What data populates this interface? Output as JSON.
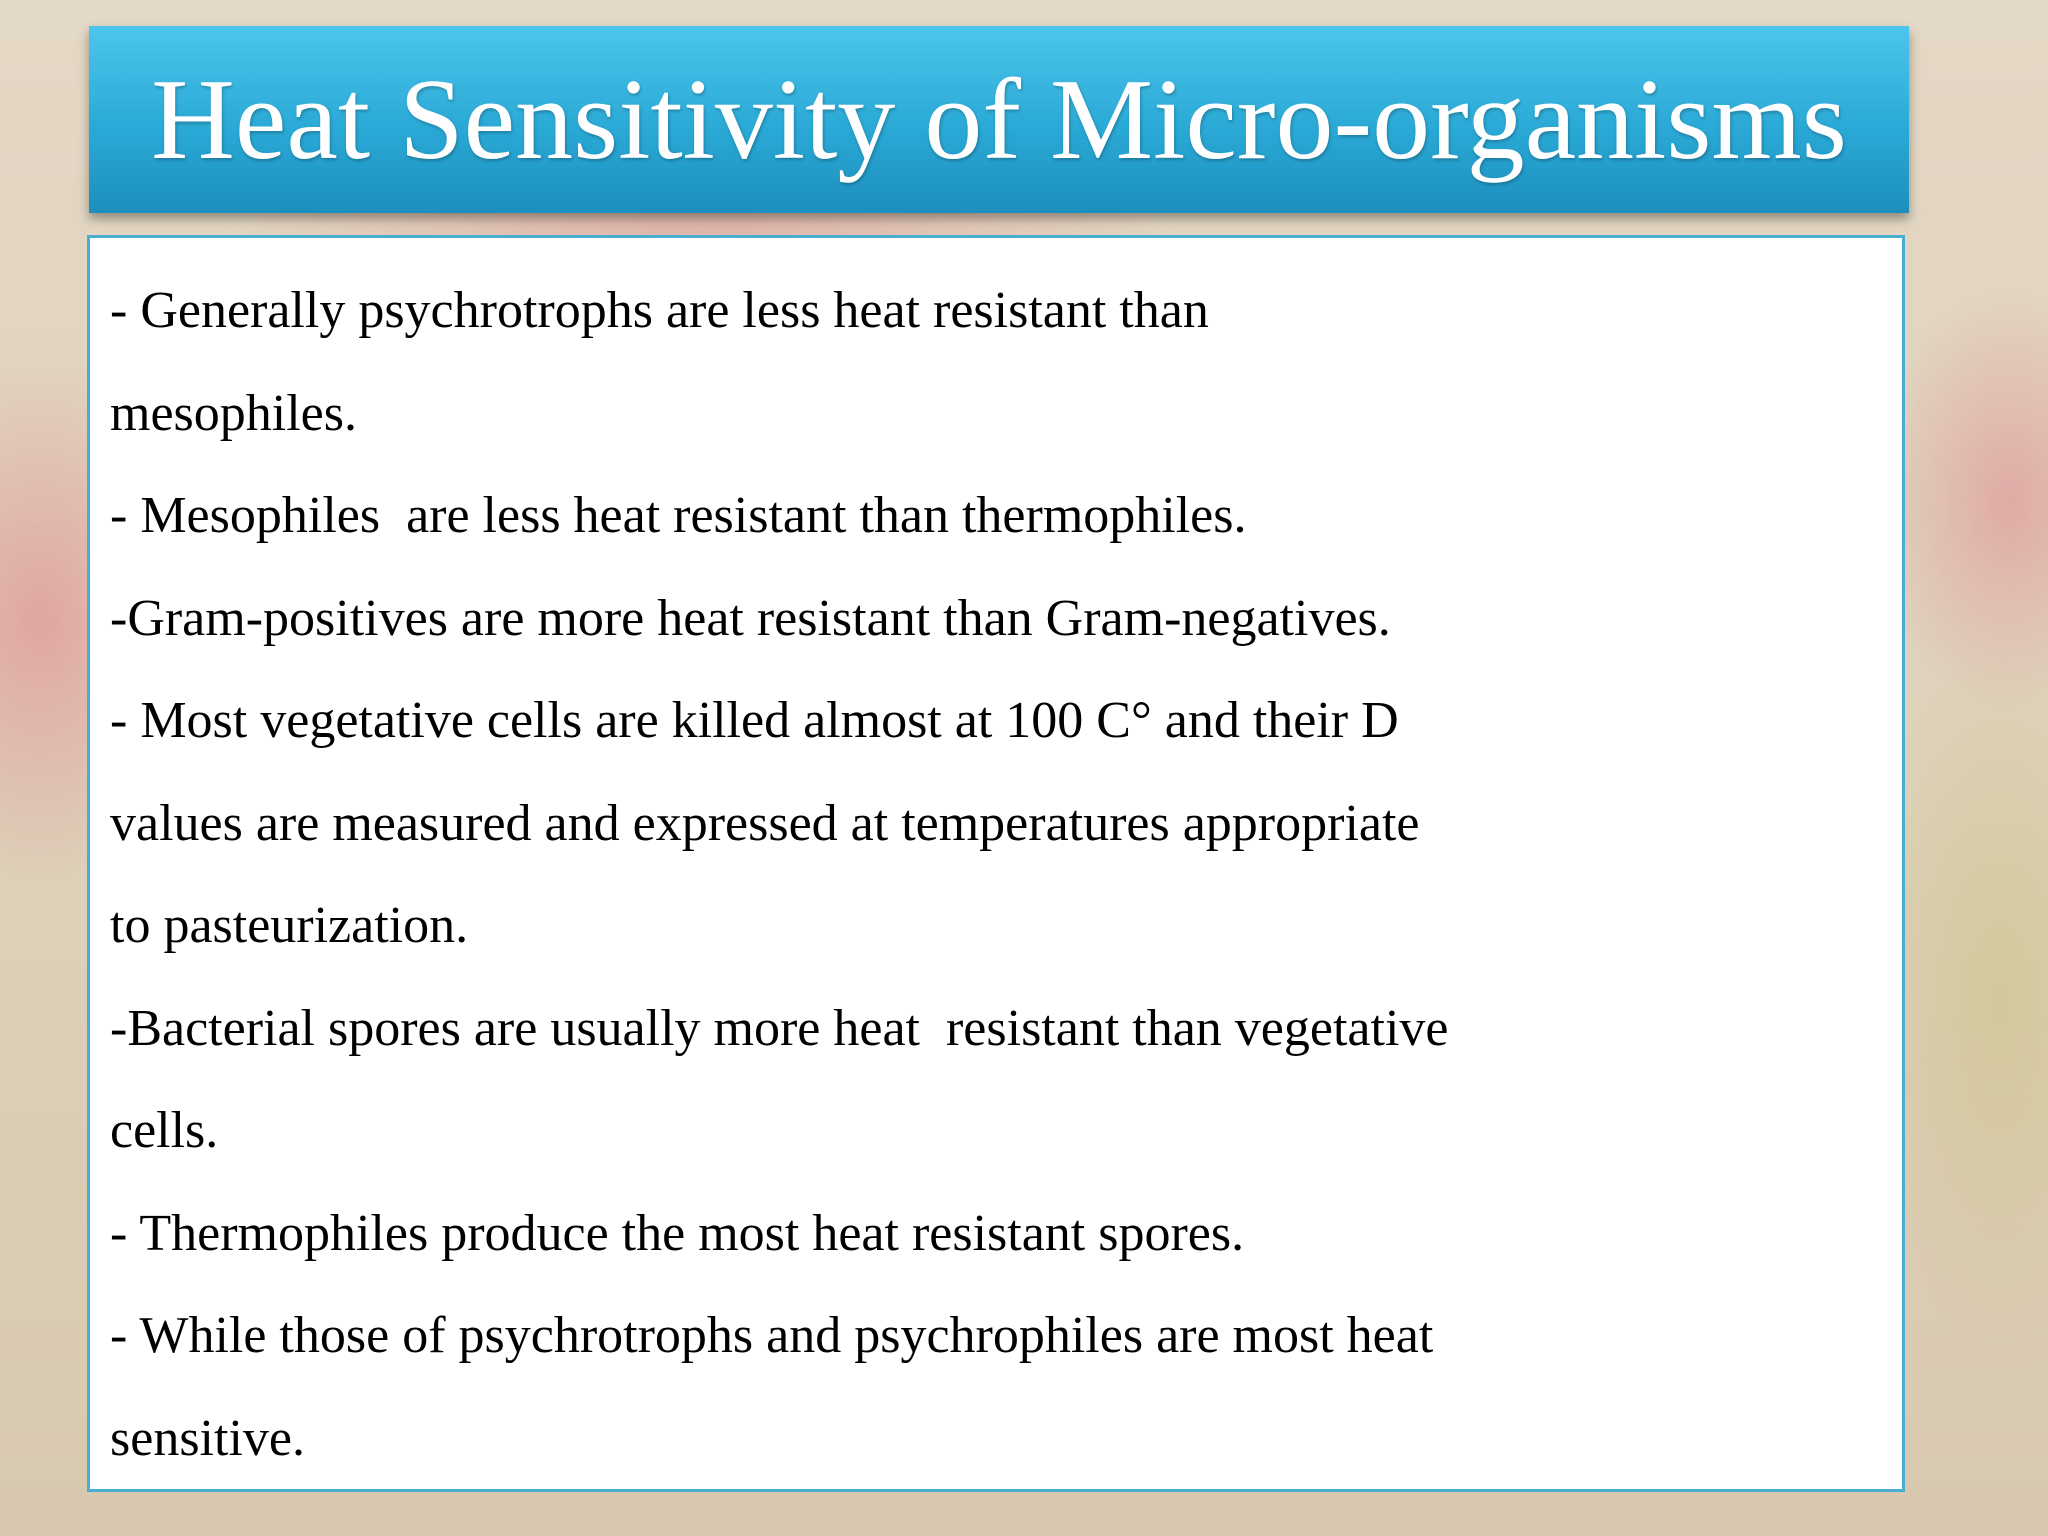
{
  "title": "Heat Sensitivity of Micro-organisms",
  "lines": [
    "- Generally psychrotrophs are less heat resistant than",
    "mesophiles.",
    "- Mesophiles  are less heat resistant than thermophiles.",
    "-Gram-positives are more heat resistant than Gram-negatives.",
    "- Most vegetative cells are killed almost at 100 C° and their D",
    "values are measured and expressed at temperatures appropriate",
    "to pasteurization.",
    "-Bacterial spores are usually more heat  resistant than vegetative",
    "cells.",
    "- Thermophiles produce the most heat resistant spores.",
    "- While those of psychrotrophs and psychrophiles are most heat",
    "sensitive."
  ]
}
